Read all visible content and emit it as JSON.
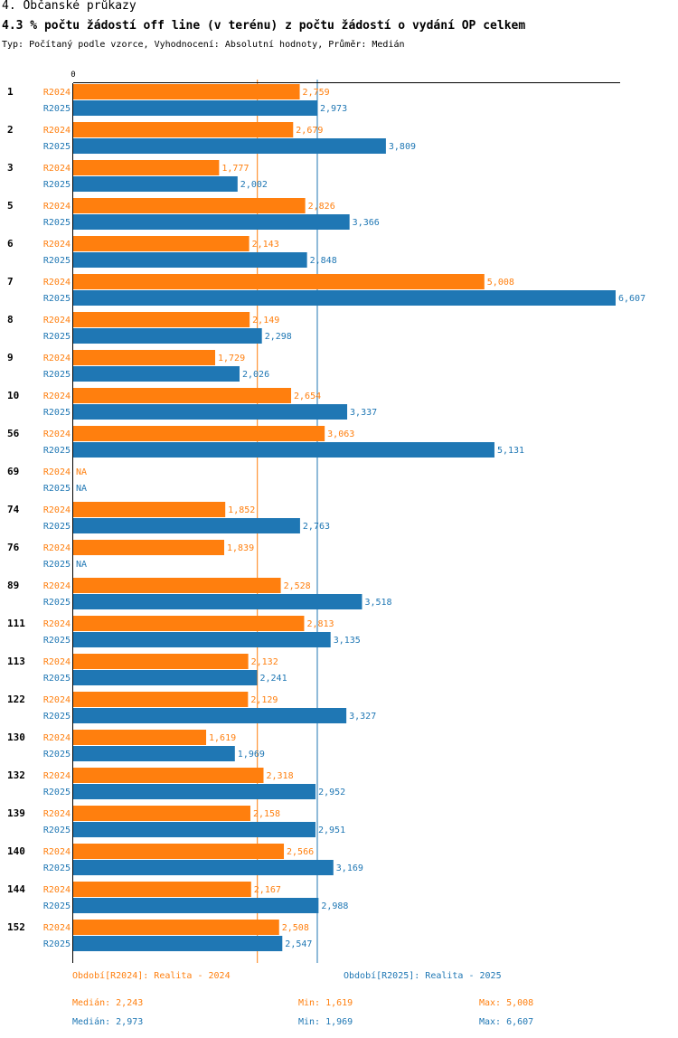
{
  "header": {
    "section": "4. Občanské průkazy",
    "title": "4.3 % počtu žádostí off line (v terénu) z počtu žádostí o vydání OP celkem",
    "subtitle": "Typ: Počítaný podle vzorce, Vyhodnocení: Absolutní hodnoty, Průměr: Medián"
  },
  "colors": {
    "r2024": "#FF7F0E",
    "r2025": "#1F77B4"
  },
  "chart_data": {
    "type": "bar",
    "orientation": "horizontal",
    "xlim": [
      0,
      6.607
    ],
    "x_tick_labels": [
      "0"
    ],
    "categories": [
      "1",
      "2",
      "3",
      "5",
      "6",
      "7",
      "8",
      "9",
      "10",
      "56",
      "69",
      "74",
      "76",
      "89",
      "111",
      "113",
      "122",
      "130",
      "132",
      "139",
      "140",
      "144",
      "152"
    ],
    "series": [
      {
        "name": "R2024",
        "values": [
          2.759,
          2.679,
          1.777,
          2.826,
          2.143,
          5.008,
          2.149,
          1.729,
          2.654,
          3.063,
          null,
          1.852,
          1.839,
          2.528,
          2.813,
          2.132,
          2.129,
          1.619,
          2.318,
          2.158,
          2.566,
          2.167,
          2.508
        ],
        "labels": [
          "2,759",
          "2,679",
          "1,777",
          "2,826",
          "2,143",
          "5,008",
          "2,149",
          "1,729",
          "2,654",
          "3,063",
          "NA",
          "1,852",
          "1,839",
          "2,528",
          "2,813",
          "2,132",
          "2,129",
          "1,619",
          "2,318",
          "2,158",
          "2,566",
          "2,167",
          "2,508"
        ],
        "median": 2.243
      },
      {
        "name": "R2025",
        "values": [
          2.973,
          3.809,
          2.002,
          3.366,
          2.848,
          6.607,
          2.298,
          2.026,
          3.337,
          5.131,
          null,
          2.763,
          null,
          3.518,
          3.135,
          2.241,
          3.327,
          1.969,
          2.952,
          2.951,
          3.169,
          2.988,
          2.547
        ],
        "labels": [
          "2,973",
          "3,809",
          "2,002",
          "3,366",
          "2,848",
          "6,607",
          "2,298",
          "2,026",
          "3,337",
          "5,131",
          "NA",
          "2,763",
          "NA",
          "3,518",
          "3,135",
          "2,241",
          "3,327",
          "1,969",
          "2,952",
          "2,951",
          "3,169",
          "2,988",
          "2,547"
        ],
        "median": 2.973
      }
    ]
  },
  "legend": {
    "r2024": "Období[R2024]: Realita - 2024",
    "r2025": "Období[R2025]: Realita - 2025"
  },
  "stats": {
    "r2024": {
      "median": "Medián: 2,243",
      "min": "Min: 1,619",
      "max": "Max: 5,008"
    },
    "r2025": {
      "median": "Medián: 2,973",
      "min": "Min: 1,969",
      "max": "Max: 6,607"
    }
  }
}
